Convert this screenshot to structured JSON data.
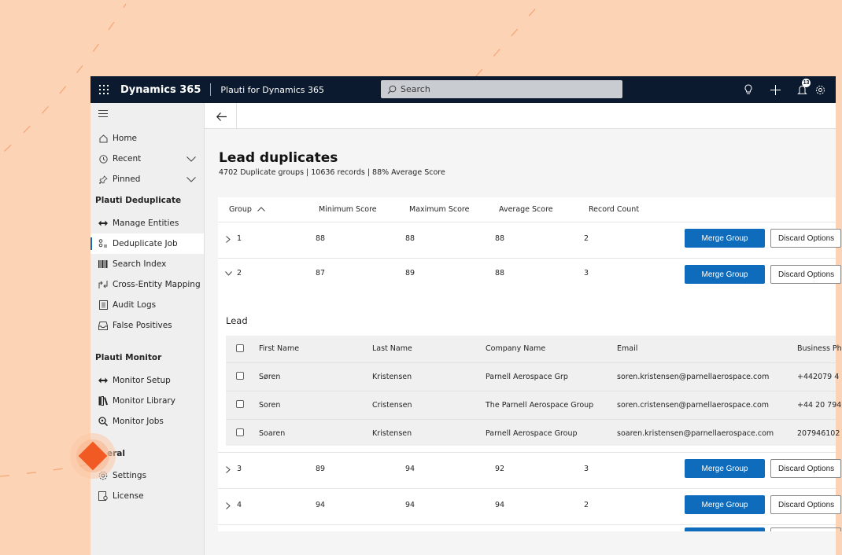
{
  "topbar": {
    "app_name": "Dynamics 365",
    "sub_name": "Plauti for Dynamics 365",
    "search_placeholder": "Search",
    "notification_count": "13"
  },
  "sidebar": {
    "nav": [
      {
        "label": "Home",
        "icon": "home-icon"
      },
      {
        "label": "Recent",
        "icon": "clock-icon"
      },
      {
        "label": "Pinned",
        "icon": "pin-icon"
      }
    ],
    "sections": [
      {
        "title": "Plauti Deduplicate",
        "items": [
          {
            "label": "Manage Entities",
            "icon": "arrows-icon"
          },
          {
            "label": "Deduplicate Job",
            "icon": "dedupe-icon",
            "active": true
          },
          {
            "label": "Search Index",
            "icon": "barcode-icon"
          },
          {
            "label": "Cross-Entity Mapping",
            "icon": "mapping-icon"
          },
          {
            "label": "Audit Logs",
            "icon": "log-icon"
          },
          {
            "label": "False Positives",
            "icon": "inbox-icon"
          }
        ]
      },
      {
        "title": "Plauti Monitor",
        "items": [
          {
            "label": "Monitor Setup",
            "icon": "arrows-icon"
          },
          {
            "label": "Monitor Library",
            "icon": "library-icon"
          },
          {
            "label": "Monitor Jobs",
            "icon": "search-zoom-icon"
          }
        ]
      },
      {
        "title": "eral",
        "items": [
          {
            "label": "Settings",
            "icon": "gear-icon"
          },
          {
            "label": "License",
            "icon": "license-icon"
          }
        ]
      }
    ]
  },
  "page": {
    "title": "Lead duplicates",
    "subtitle": "4702 Duplicate groups | 10636 records | 88% Average Score"
  },
  "table": {
    "headers": {
      "group": "Group",
      "min": "Minimum Score",
      "max": "Maximum Score",
      "avg": "Average Score",
      "count": "Record Count"
    },
    "merge_label": "Merge Group",
    "discard_label": "Discard Options",
    "groups": [
      {
        "id": "1",
        "min": "88",
        "max": "88",
        "avg": "88",
        "count": "2",
        "expanded": false
      },
      {
        "id": "2",
        "min": "87",
        "max": "89",
        "avg": "88",
        "count": "3",
        "expanded": true
      },
      {
        "id": "3",
        "min": "89",
        "max": "94",
        "avg": "92",
        "count": "3",
        "expanded": false
      },
      {
        "id": "4",
        "min": "94",
        "max": "94",
        "avg": "94",
        "count": "2",
        "expanded": false
      }
    ],
    "expanded_entity": "Lead",
    "sub_headers": {
      "first": "First Name",
      "last": "Last Name",
      "company": "Company Name",
      "email": "Email",
      "phone": "Business Ph"
    },
    "records": [
      {
        "first": "Søren",
        "last": "Kristensen",
        "company": "Parnell Aerospace Grp",
        "email": "soren.kristensen@parnellaerospace.com",
        "phone": "+442079 4"
      },
      {
        "first": "Soren",
        "last": "Cristensen",
        "company": "The Parnell Aerospace Group",
        "email": "soren.cristensen@parnellaerospace.com",
        "phone": "+44 20 794"
      },
      {
        "first": "Soaren",
        "last": "Kristensen",
        "company": "Parnell Aerospace Group",
        "email": "soaren.kristensen@parnellaerospace.com",
        "phone": "207946102"
      }
    ]
  },
  "colors": {
    "background": "#fdd3b5",
    "topbar": "#0b1a2e",
    "accent": "#0f6cbd",
    "diamond": "#f15a22"
  }
}
